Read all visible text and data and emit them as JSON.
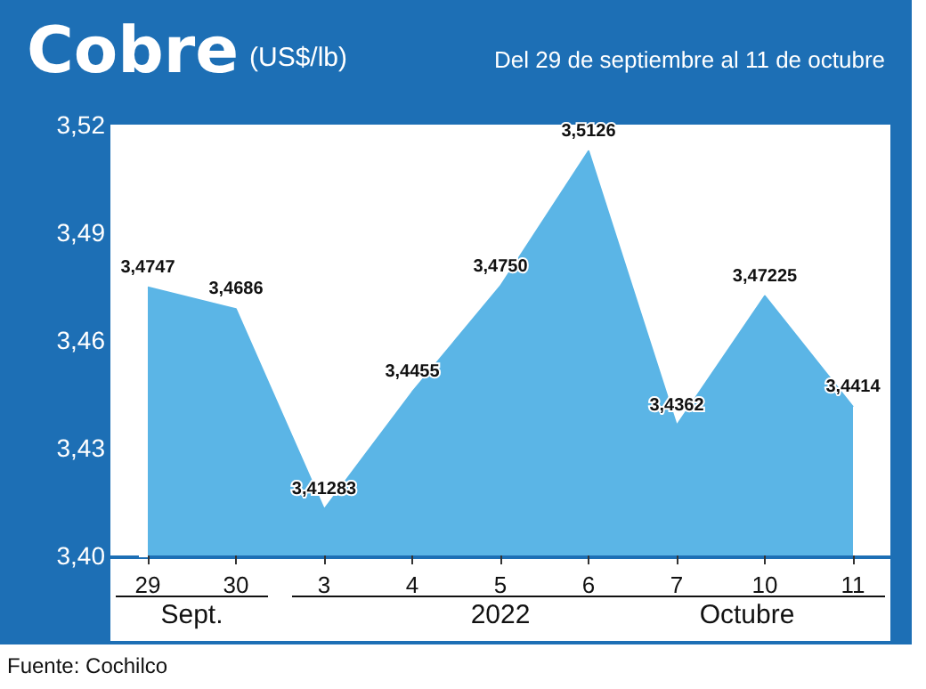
{
  "chart_data": {
    "type": "area",
    "title": "Cobre",
    "ylabel": "(US$/lb)",
    "subtitle": "Del 29 de septiembre al 11 de octubre",
    "categories": [
      "29",
      "30",
      "3",
      "4",
      "5",
      "6",
      "7",
      "10",
      "11"
    ],
    "series": [
      {
        "color": "#5bb5e6",
        "values": [
          3.4747,
          3.4686,
          3.41283,
          3.4455,
          3.475,
          3.5126,
          3.4362,
          3.47225,
          3.4414
        ],
        "value_labels": [
          "3,4747",
          "3,4686",
          "3,41283",
          "3,4455",
          "3,4750",
          "3,5126",
          "3,4362",
          "3,47225",
          "3,4414"
        ]
      }
    ],
    "ylim": [
      3.4,
      3.52
    ],
    "yticks": [
      {
        "value": 3.4,
        "label": "3,40"
      },
      {
        "value": 3.43,
        "label": "3,43"
      },
      {
        "value": 3.46,
        "label": "3,46"
      },
      {
        "value": 3.49,
        "label": "3,49"
      },
      {
        "value": 3.52,
        "label": "3,52"
      }
    ],
    "annotations": [
      "Sept.",
      "2022",
      "Octubre",
      "Fuente: Cochilco"
    ],
    "grid": false,
    "marker": "none"
  }
}
